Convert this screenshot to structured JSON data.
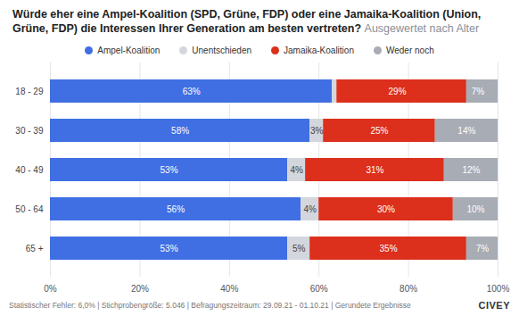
{
  "chart_data": {
    "type": "bar",
    "orientation": "horizontal",
    "stacked": true,
    "title": "Würde eher eine Ampel-Koalition (SPD, Grüne, FDP) oder eine Jamaika-Koalition (Union, Grüne, FDP) die Interessen Ihrer Generation am besten vertreten?",
    "subtitle": "Ausgewertet nach Alter",
    "caption": "Statistischer Fehler: 6,0% | Stichprobengröße: 5.046 | Befragungszeitraum: 29.09.21 - 01.10.21 | Gerundete Ergebnisse",
    "source": "CIVEY",
    "categories": [
      "18 - 29",
      "30 - 39",
      "40 - 49",
      "50 - 64",
      "65 +"
    ],
    "series": [
      {
        "name": "Ampel-Koalition",
        "color": "#3f6fe3",
        "values": [
          63,
          58,
          53,
          56,
          53
        ],
        "value_labels": [
          "63%",
          "58%",
          "53%",
          "56%",
          "53%"
        ]
      },
      {
        "name": "Unentschieden",
        "color": "#d3d6dc",
        "values": [
          1,
          3,
          4,
          4,
          5
        ],
        "value_labels": [
          null,
          "3%",
          "4%",
          "4%",
          "5%"
        ]
      },
      {
        "name": "Jamaika-Koalition",
        "color": "#dc2f1c",
        "values": [
          29,
          25,
          31,
          30,
          35
        ],
        "value_labels": [
          "29%",
          "25%",
          "31%",
          "30%",
          "35%"
        ]
      },
      {
        "name": "Weder noch",
        "color": "#a8acb4",
        "values": [
          7,
          14,
          12,
          10,
          7
        ],
        "value_labels": [
          "7%",
          "14%",
          "12%",
          "10%",
          "7%"
        ]
      }
    ],
    "xlim": [
      0,
      100
    ],
    "xticks": [
      {
        "value": 0,
        "label": "0%"
      },
      {
        "value": 20,
        "label": "20%"
      },
      {
        "value": 40,
        "label": "40%"
      },
      {
        "value": 60,
        "label": "60%"
      },
      {
        "value": 80,
        "label": "80%"
      },
      {
        "value": 100,
        "label": "100%"
      }
    ],
    "grid": true,
    "legend": "top",
    "data_labels": true
  }
}
